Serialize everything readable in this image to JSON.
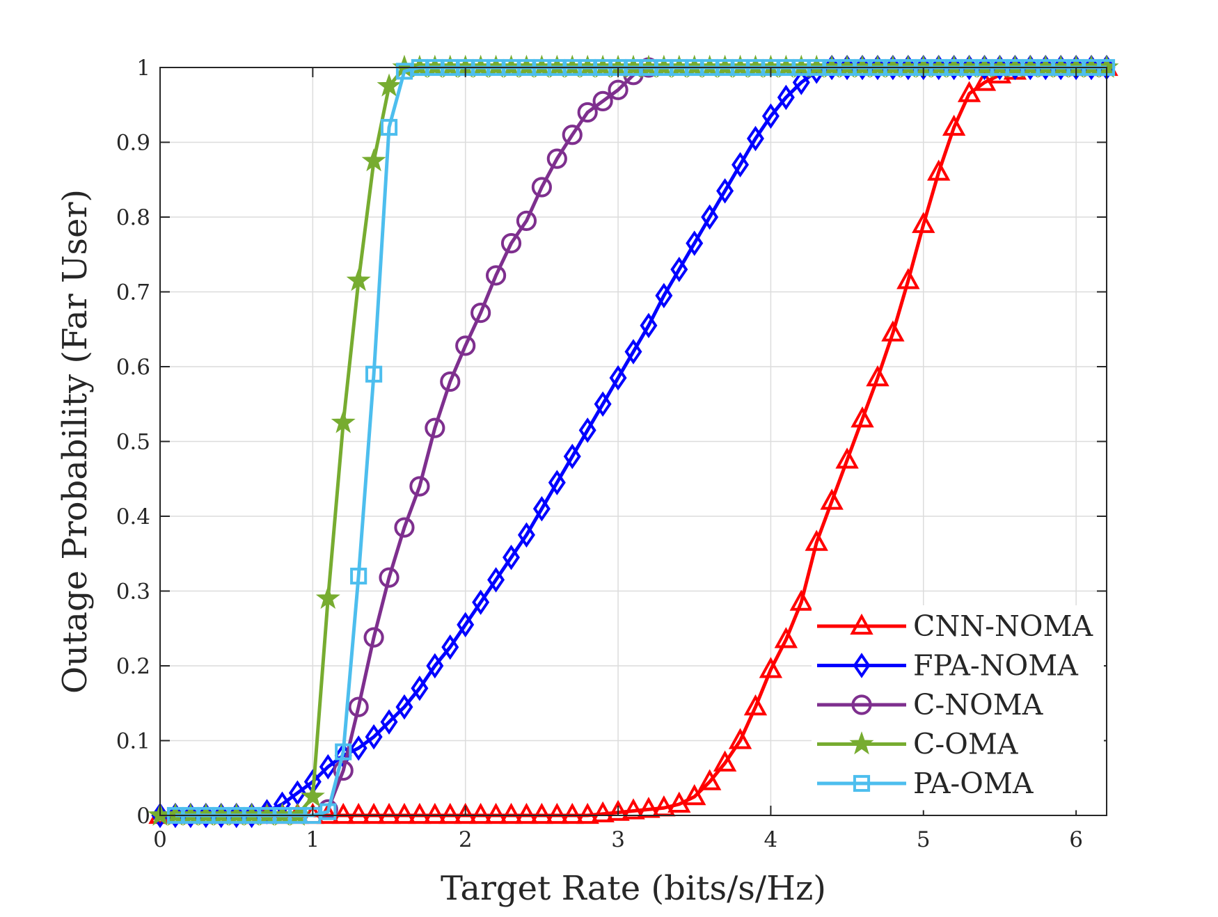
{
  "chart_data": {
    "type": "line",
    "title": "",
    "xlabel": "Target Rate (bits/s/Hz)",
    "ylabel": "Outage Probability (Far User)",
    "xlim": [
      0,
      6.2
    ],
    "ylim": [
      0,
      1
    ],
    "xticks": [
      0,
      1,
      2,
      3,
      4,
      5,
      6
    ],
    "xtick_labels": [
      "0",
      "1",
      "2",
      "3",
      "4",
      "5",
      "6"
    ],
    "yticks": [
      0,
      0.1,
      0.2,
      0.3,
      0.4,
      0.5,
      0.6,
      0.7,
      0.8,
      0.9,
      1
    ],
    "ytick_labels": [
      "0",
      "0.1",
      "0.2",
      "0.3",
      "0.4",
      "0.5",
      "0.6",
      "0.7",
      "0.8",
      "0.9",
      "1"
    ],
    "grid": true,
    "legend_position": "bottom-right",
    "series": [
      {
        "name": "CNN-NOMA",
        "color": "#ff0000",
        "marker": "triangle",
        "x": [
          0.0,
          0.1,
          0.2,
          0.3,
          0.4,
          0.5,
          0.6,
          0.7,
          0.8,
          0.9,
          1.0,
          1.1,
          1.2,
          1.3,
          1.4,
          1.5,
          1.6,
          1.7,
          1.8,
          1.9,
          2.0,
          2.1,
          2.2,
          2.3,
          2.4,
          2.5,
          2.6,
          2.7,
          2.8,
          2.9,
          3.0,
          3.1,
          3.2,
          3.3,
          3.4,
          3.5,
          3.6,
          3.7,
          3.8,
          3.9,
          4.0,
          4.1,
          4.2,
          4.3,
          4.4,
          4.5,
          4.6,
          4.7,
          4.8,
          4.9,
          5.0,
          5.1,
          5.2,
          5.3,
          5.4,
          5.5,
          5.6,
          5.7,
          5.8,
          5.9,
          6.0,
          6.1,
          6.2
        ],
        "y": [
          0,
          0,
          0,
          0,
          0,
          0,
          0,
          0,
          0,
          0,
          0,
          0,
          0,
          0,
          0,
          0,
          0,
          0,
          0,
          0,
          0,
          0,
          0,
          0,
          0,
          0,
          0,
          0,
          0,
          0.002,
          0.004,
          0.006,
          0.008,
          0.01,
          0.015,
          0.025,
          0.045,
          0.07,
          0.1,
          0.145,
          0.195,
          0.235,
          0.285,
          0.365,
          0.42,
          0.475,
          0.53,
          0.585,
          0.645,
          0.715,
          0.79,
          0.86,
          0.92,
          0.965,
          0.98,
          0.99,
          0.995,
          1,
          1,
          1,
          1,
          1,
          1
        ]
      },
      {
        "name": "FPA-NOMA",
        "color": "#0000ff",
        "marker": "diamond",
        "x": [
          0.0,
          0.1,
          0.2,
          0.3,
          0.4,
          0.5,
          0.6,
          0.7,
          0.8,
          0.9,
          1.0,
          1.1,
          1.2,
          1.3,
          1.4,
          1.5,
          1.6,
          1.7,
          1.8,
          1.9,
          2.0,
          2.1,
          2.2,
          2.3,
          2.4,
          2.5,
          2.6,
          2.7,
          2.8,
          2.9,
          3.0,
          3.1,
          3.2,
          3.3,
          3.4,
          3.5,
          3.6,
          3.7,
          3.8,
          3.9,
          4.0,
          4.1,
          4.2,
          4.3,
          4.4,
          4.5,
          4.6,
          4.7,
          4.8,
          4.9,
          5.0,
          5.1,
          5.2,
          5.3,
          5.4,
          5.5,
          5.6,
          5.7,
          5.8,
          5.9,
          6.0,
          6.1,
          6.2
        ],
        "y": [
          0,
          0,
          0,
          0,
          0,
          0,
          0,
          0.005,
          0.015,
          0.03,
          0.045,
          0.065,
          0.08,
          0.09,
          0.105,
          0.125,
          0.145,
          0.17,
          0.2,
          0.225,
          0.255,
          0.285,
          0.315,
          0.345,
          0.375,
          0.41,
          0.445,
          0.48,
          0.515,
          0.55,
          0.585,
          0.62,
          0.655,
          0.695,
          0.73,
          0.765,
          0.8,
          0.835,
          0.87,
          0.905,
          0.935,
          0.96,
          0.98,
          0.995,
          1,
          1,
          1,
          1,
          1,
          1,
          1,
          1,
          1,
          1,
          1,
          1,
          1,
          1,
          1,
          1,
          1,
          1,
          1
        ]
      },
      {
        "name": "C-NOMA",
        "color": "#7e2f8e",
        "marker": "circle",
        "x": [
          1.1,
          1.2,
          1.3,
          1.4,
          1.5,
          1.6,
          1.7,
          1.8,
          1.9,
          2.0,
          2.1,
          2.2,
          2.3,
          2.4,
          2.5,
          2.6,
          2.7,
          2.8,
          2.9,
          3.0,
          3.1,
          3.2
        ],
        "y": [
          0.008,
          0.06,
          0.145,
          0.238,
          0.318,
          0.385,
          0.44,
          0.518,
          0.58,
          0.628,
          0.672,
          0.722,
          0.765,
          0.795,
          0.84,
          0.878,
          0.91,
          0.94,
          0.955,
          0.97,
          0.99,
          1
        ]
      },
      {
        "name": "C-OMA",
        "color": "#77ac30",
        "marker": "star",
        "x": [
          0.0,
          0.1,
          0.2,
          0.3,
          0.4,
          0.5,
          0.6,
          0.7,
          0.8,
          0.9,
          1.0,
          1.1,
          1.2,
          1.3,
          1.4,
          1.5,
          1.6,
          1.7,
          1.8,
          1.9,
          2.0,
          2.1,
          2.2,
          2.3,
          2.4,
          2.5,
          2.6,
          2.7,
          2.8,
          2.9,
          3.0,
          3.1,
          3.2,
          3.3,
          3.4,
          3.5,
          3.6,
          3.7,
          3.8,
          3.9,
          4.0,
          4.1,
          4.2,
          4.3,
          4.4,
          4.5,
          4.6,
          4.7,
          4.8,
          4.9,
          5.0,
          5.1,
          5.2,
          5.3,
          5.4,
          5.5,
          5.6,
          5.7,
          5.8,
          5.9,
          6.0,
          6.1,
          6.2
        ],
        "y": [
          0,
          0,
          0,
          0,
          0,
          0,
          0,
          0,
          0,
          0,
          0.025,
          0.29,
          0.525,
          0.715,
          0.875,
          0.975,
          1,
          1,
          1,
          1,
          1,
          1,
          1,
          1,
          1,
          1,
          1,
          1,
          1,
          1,
          1,
          1,
          1,
          1,
          1,
          1,
          1,
          1,
          1,
          1,
          1,
          1,
          1,
          1,
          1,
          1,
          1,
          1,
          1,
          1,
          1,
          1,
          1,
          1,
          1,
          1,
          1,
          1,
          1,
          1,
          1,
          1,
          1
        ]
      },
      {
        "name": "PA-OMA",
        "color": "#4dbeee",
        "marker": "square",
        "x": [
          0.1,
          0.2,
          0.3,
          0.4,
          0.5,
          0.6,
          0.7,
          0.8,
          0.9,
          1.0,
          1.1,
          1.2,
          1.3,
          1.4,
          1.5,
          1.6,
          1.7,
          1.8,
          1.9,
          2.0,
          2.1,
          2.2,
          2.3,
          2.4,
          2.5,
          2.6,
          2.7,
          2.8,
          2.9,
          3.0,
          3.1,
          3.2,
          3.3,
          3.4,
          3.5,
          3.6,
          3.7,
          3.8,
          3.9,
          4.0,
          4.1,
          4.2,
          4.3,
          4.4,
          4.5,
          4.6,
          4.7,
          4.8,
          4.9,
          5.0,
          5.1,
          5.2,
          5.3,
          5.4,
          5.5,
          5.6,
          5.7,
          5.8,
          5.9,
          6.0,
          6.1,
          6.2
        ],
        "y": [
          0,
          0,
          0,
          0,
          0,
          0,
          0,
          0,
          0,
          0,
          0.005,
          0.085,
          0.32,
          0.59,
          0.92,
          0.995,
          1,
          1,
          1,
          1,
          1,
          1,
          1,
          1,
          1,
          1,
          1,
          1,
          1,
          1,
          1,
          1,
          1,
          1,
          1,
          1,
          1,
          1,
          1,
          1,
          1,
          1,
          1,
          1,
          1,
          1,
          1,
          1,
          1,
          1,
          1,
          1,
          1,
          1,
          1,
          1,
          1,
          1,
          1,
          1,
          1,
          1
        ]
      }
    ]
  }
}
